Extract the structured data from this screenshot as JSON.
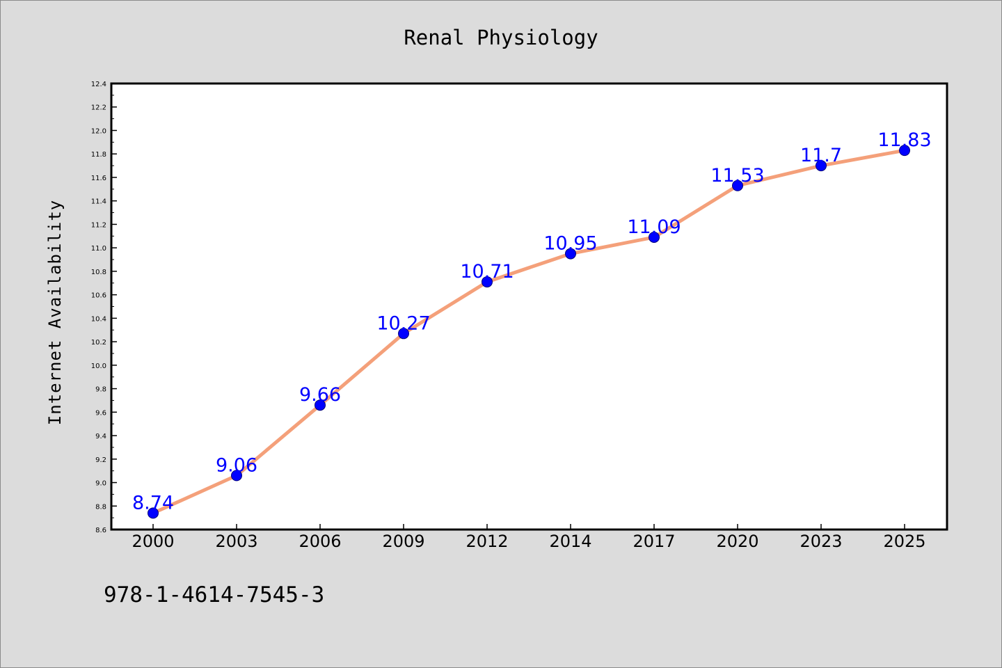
{
  "footer_text": "978-1-4614-7545-3",
  "colors": {
    "background": "#dcdcdc",
    "plot_area": "#ffffff",
    "line": "#f4a07a",
    "marker": "#0000ff",
    "data_label": "#0000ff"
  },
  "chart_data": {
    "type": "line",
    "title": "Renal Physiology",
    "xlabel": "",
    "ylabel": "Internet Availability",
    "categories": [
      "2000",
      "2003",
      "2006",
      "2009",
      "2012",
      "2014",
      "2017",
      "2020",
      "2023",
      "2025"
    ],
    "series": [
      {
        "values": [
          8.74,
          9.06,
          9.66,
          10.27,
          10.71,
          10.95,
          11.09,
          11.53,
          11.7,
          11.83
        ],
        "labels": [
          "8.74",
          "9.06",
          "9.66",
          "10.27",
          "10.71",
          "10.95",
          "11.09",
          "11.53",
          "11.7",
          "11.83"
        ]
      }
    ],
    "ylim": [
      8.6,
      12.4
    ],
    "yticks": [
      "8.6",
      "8.8",
      "9.0",
      "9.2",
      "9.4",
      "9.6",
      "9.8",
      "10.0",
      "10.2",
      "10.4",
      "10.6",
      "10.8",
      "11.0",
      "11.2",
      "11.4",
      "11.6",
      "11.8",
      "12.0",
      "12.2",
      "12.4"
    ],
    "grid": false,
    "legend": "none"
  }
}
